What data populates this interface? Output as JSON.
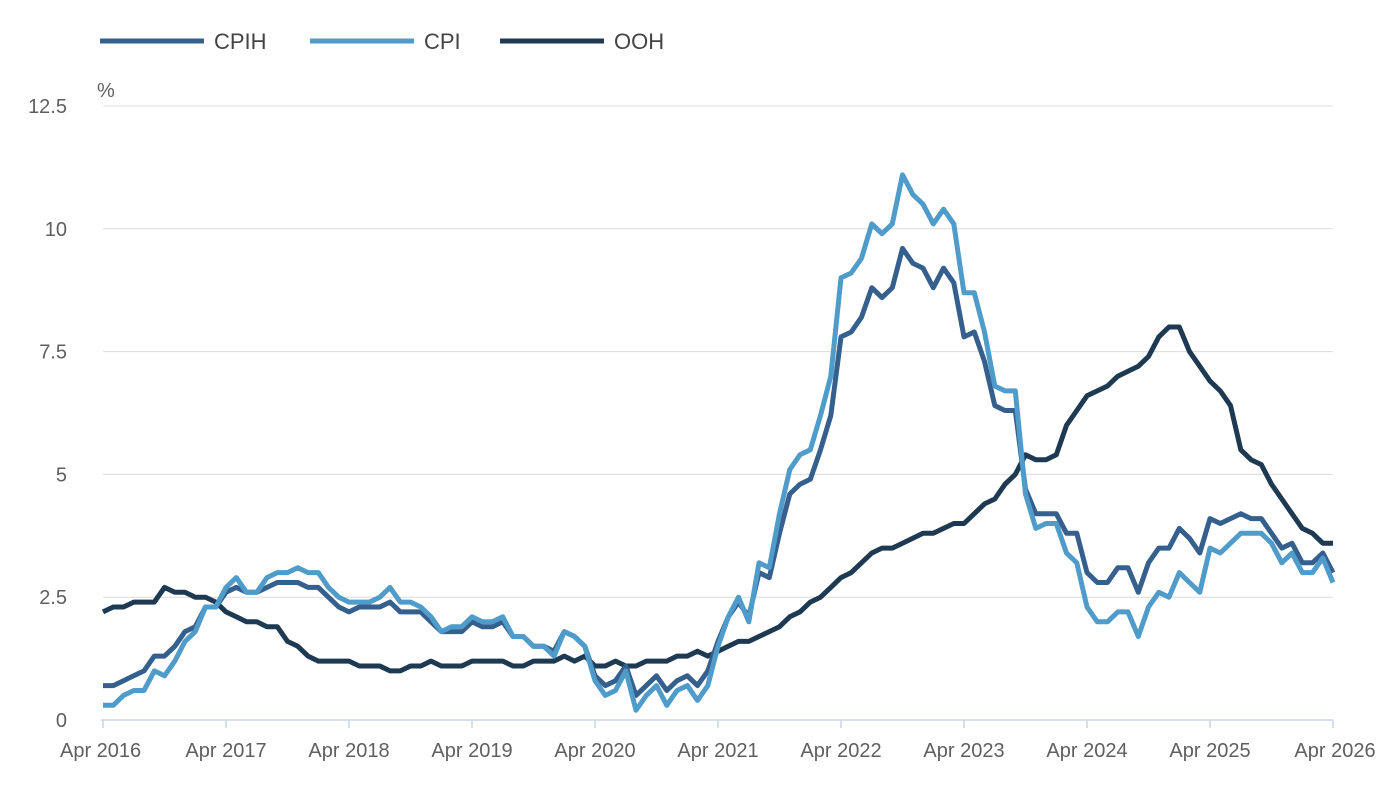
{
  "chart_data": {
    "type": "line",
    "title": "",
    "xlabel": "",
    "ylabel": "%",
    "ylim": [
      0,
      12.5
    ],
    "yticks": [
      {
        "value": 0,
        "label": "0"
      },
      {
        "value": 2.5,
        "label": "2.5"
      },
      {
        "value": 5,
        "label": "5"
      },
      {
        "value": 7.5,
        "label": "7.5"
      },
      {
        "value": 10,
        "label": "10"
      },
      {
        "value": 12.5,
        "label": "12.5"
      }
    ],
    "x_start": "Apr 2016",
    "x_end": "Apr 2026",
    "xticks": [
      "Apr 2016",
      "Apr 2017",
      "Apr 2018",
      "Apr 2019",
      "Apr 2020",
      "Apr 2021",
      "Apr 2022",
      "Apr 2023",
      "Apr 2024",
      "Apr 2025",
      "Apr 2026"
    ],
    "grid": true,
    "legend_position": "top-left",
    "series": [
      {
        "name": "CPIH",
        "color": "#355f8d",
        "values": [
          0.7,
          0.7,
          0.8,
          0.9,
          1.0,
          1.3,
          1.3,
          1.5,
          1.8,
          1.9,
          2.3,
          2.3,
          2.6,
          2.7,
          2.6,
          2.6,
          2.7,
          2.8,
          2.8,
          2.8,
          2.7,
          2.7,
          2.5,
          2.3,
          2.2,
          2.3,
          2.3,
          2.3,
          2.4,
          2.2,
          2.2,
          2.2,
          2.0,
          1.8,
          1.8,
          1.8,
          2.0,
          1.9,
          1.9,
          2.0,
          1.7,
          1.7,
          1.5,
          1.5,
          1.4,
          1.8,
          1.7,
          1.5,
          0.9,
          0.7,
          0.8,
          1.1,
          0.5,
          0.7,
          0.9,
          0.6,
          0.8,
          0.9,
          0.7,
          1.0,
          1.6,
          2.1,
          2.4,
          2.1,
          3.0,
          2.9,
          3.8,
          4.6,
          4.8,
          4.9,
          5.5,
          6.2,
          7.8,
          7.9,
          8.2,
          8.8,
          8.6,
          8.8,
          9.6,
          9.3,
          9.2,
          8.8,
          9.2,
          8.9,
          7.8,
          7.9,
          7.3,
          6.4,
          6.3,
          6.3,
          4.7,
          4.2,
          4.2,
          4.2,
          3.8,
          3.8,
          3.0,
          2.8,
          2.8,
          3.1,
          3.1,
          2.6,
          3.2,
          3.5,
          3.5,
          3.9,
          3.7,
          3.4,
          4.1,
          4.0,
          4.1,
          4.2,
          4.1,
          4.1,
          3.8,
          3.5,
          3.6,
          3.2,
          3.2,
          3.4,
          3.0
        ]
      },
      {
        "name": "CPI",
        "color": "#4f9bc9",
        "values": [
          0.3,
          0.3,
          0.5,
          0.6,
          0.6,
          1.0,
          0.9,
          1.2,
          1.6,
          1.8,
          2.3,
          2.3,
          2.7,
          2.9,
          2.6,
          2.6,
          2.9,
          3.0,
          3.0,
          3.1,
          3.0,
          3.0,
          2.7,
          2.5,
          2.4,
          2.4,
          2.4,
          2.5,
          2.7,
          2.4,
          2.4,
          2.3,
          2.1,
          1.8,
          1.9,
          1.9,
          2.1,
          2.0,
          2.0,
          2.1,
          1.7,
          1.7,
          1.5,
          1.5,
          1.3,
          1.8,
          1.7,
          1.5,
          0.8,
          0.5,
          0.6,
          1.0,
          0.2,
          0.5,
          0.7,
          0.3,
          0.6,
          0.7,
          0.4,
          0.7,
          1.5,
          2.1,
          2.5,
          2.0,
          3.2,
          3.1,
          4.2,
          5.1,
          5.4,
          5.5,
          6.2,
          7.0,
          9.0,
          9.1,
          9.4,
          10.1,
          9.9,
          10.1,
          11.1,
          10.7,
          10.5,
          10.1,
          10.4,
          10.1,
          8.7,
          8.7,
          7.9,
          6.8,
          6.7,
          6.7,
          4.6,
          3.9,
          4.0,
          4.0,
          3.4,
          3.2,
          2.3,
          2.0,
          2.0,
          2.2,
          2.2,
          1.7,
          2.3,
          2.6,
          2.5,
          3.0,
          2.8,
          2.6,
          3.5,
          3.4,
          3.6,
          3.8,
          3.8,
          3.8,
          3.6,
          3.2,
          3.4,
          3.0,
          3.0,
          3.3,
          2.8
        ]
      },
      {
        "name": "OOH",
        "color": "#1e3a52",
        "values": [
          2.2,
          2.3,
          2.3,
          2.4,
          2.4,
          2.4,
          2.7,
          2.6,
          2.6,
          2.5,
          2.5,
          2.4,
          2.2,
          2.1,
          2.0,
          2.0,
          1.9,
          1.9,
          1.6,
          1.5,
          1.3,
          1.2,
          1.2,
          1.2,
          1.2,
          1.1,
          1.1,
          1.1,
          1.0,
          1.0,
          1.1,
          1.1,
          1.2,
          1.1,
          1.1,
          1.1,
          1.2,
          1.2,
          1.2,
          1.2,
          1.1,
          1.1,
          1.2,
          1.2,
          1.2,
          1.3,
          1.2,
          1.3,
          1.1,
          1.1,
          1.2,
          1.1,
          1.1,
          1.2,
          1.2,
          1.2,
          1.3,
          1.3,
          1.4,
          1.3,
          1.4,
          1.5,
          1.6,
          1.6,
          1.7,
          1.8,
          1.9,
          2.1,
          2.2,
          2.4,
          2.5,
          2.7,
          2.9,
          3.0,
          3.2,
          3.4,
          3.5,
          3.5,
          3.6,
          3.7,
          3.8,
          3.8,
          3.9,
          4.0,
          4.0,
          4.2,
          4.4,
          4.5,
          4.8,
          5.0,
          5.4,
          5.3,
          5.3,
          5.4,
          6.0,
          6.3,
          6.6,
          6.7,
          6.8,
          7.0,
          7.1,
          7.2,
          7.4,
          7.8,
          8.0,
          8.0,
          7.5,
          7.2,
          6.9,
          6.7,
          6.4,
          5.5,
          5.3,
          5.2,
          4.8,
          4.5,
          4.2,
          3.9,
          3.8,
          3.6,
          3.6
        ]
      }
    ]
  }
}
